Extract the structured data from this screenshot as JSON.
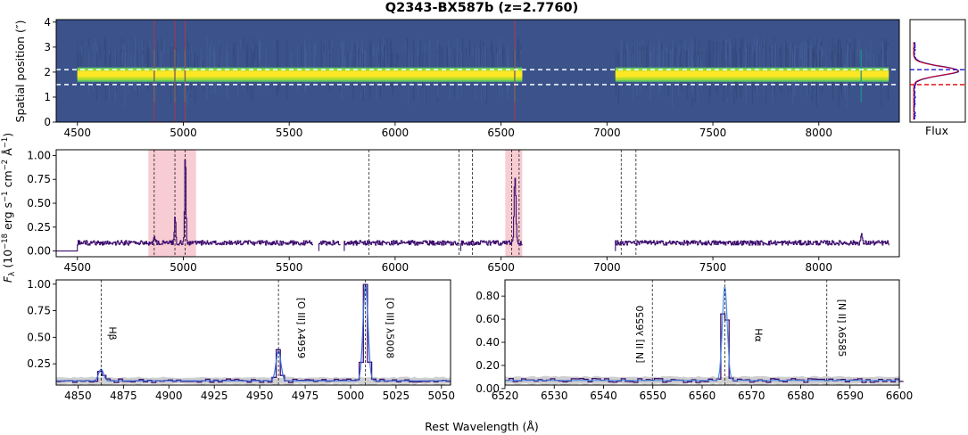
{
  "figure": {
    "title": "Q2343-BX587b (z=2.7760)",
    "xlabel": "Rest Wavelength (Å)"
  },
  "chart_data": [
    {
      "type": "heatmap",
      "name": "2D spectrum",
      "ylabel": "Spatial position (″)",
      "xlim": [
        4400,
        8380
      ],
      "ylim": [
        4.1,
        0
      ],
      "xticks": [
        4500,
        5000,
        5500,
        6000,
        6500,
        7000,
        7500,
        8000
      ],
      "yticks": [
        0,
        1,
        2,
        3,
        4
      ],
      "coverage": [
        [
          4500,
          6600
        ],
        [
          7040,
          8330
        ]
      ],
      "trace_center": 2.2,
      "extraction_window": [
        2.0,
        2.6
      ],
      "colors": {
        "background": "#3b528b",
        "trace": "#fde725",
        "edge": "#5ec962",
        "window": "#ffffff",
        "lines": "#e0302a"
      },
      "marked_lines": [
        4862.7,
        4960.3,
        5008.2,
        6564.6
      ]
    },
    {
      "type": "line",
      "name": "spatial profile",
      "xlabel": "Flux",
      "ylim": [
        4.1,
        0
      ],
      "profile_peak": 2.05,
      "window": [
        2.0,
        2.6
      ],
      "colors": {
        "profile": "#0000cc",
        "model": "#e00000",
        "window_upper": "#0000cc",
        "window_lower": "#e00000"
      }
    },
    {
      "type": "line",
      "name": "1D spectrum",
      "ylabel": "F_λ (10⁻¹⁸ erg s⁻¹ cm⁻² Å⁻¹)",
      "ylabel_parts": {
        "sym": "F",
        "sub": "λ",
        "a": "(10",
        "e1": "−18",
        "b": " erg s",
        "e2": "−1",
        "c": " cm",
        "e3": "−2",
        "d": " Å",
        "e4": "−1",
        "e": ")"
      },
      "xlim": [
        4400,
        8380
      ],
      "ylim": [
        -0.06,
        1.06
      ],
      "xticks": [
        4500,
        5000,
        5500,
        6000,
        6500,
        7000,
        7500,
        8000
      ],
      "yticks": [
        0.0,
        0.25,
        0.5,
        0.75,
        1.0
      ],
      "continuum": 0.085,
      "segments": [
        [
          4500,
          5610
        ],
        [
          5640,
          5740
        ],
        [
          5760,
          6300
        ],
        [
          6310,
          6600
        ],
        [
          7040,
          8330
        ]
      ],
      "emission_lines": [
        {
          "center": 4862.7,
          "peak": 0.17,
          "width": 3
        },
        {
          "center": 4960.3,
          "peak": 0.36,
          "width": 3
        },
        {
          "center": 5008.2,
          "peak": 1.0,
          "width": 3
        },
        {
          "center": 6564.6,
          "peak": 0.78,
          "width": 4
        },
        {
          "center": 8200,
          "peak": 0.18,
          "width": 3
        }
      ],
      "shaded_ranges": [
        [
          4835,
          5060
        ],
        [
          6520,
          6600
        ]
      ],
      "vlines": [
        4862.7,
        4960.3,
        5008.2,
        5877,
        6302,
        6365,
        6549.9,
        6585.3,
        7067,
        7137
      ],
      "colors": {
        "spectrum": "#3d0e6e",
        "shade": "#f7c3cb",
        "vline": "#000000"
      }
    },
    {
      "type": "line",
      "name": "Hβ + [O III] zoom",
      "xlim": [
        4838,
        5055
      ],
      "ylim": [
        0.05,
        1.04
      ],
      "xticks": [
        4850,
        4875,
        4900,
        4925,
        4950,
        4975,
        5000,
        5025,
        5050
      ],
      "yticks": [
        0.25,
        0.5,
        0.75,
        1.0
      ],
      "continuum": 0.09,
      "lines": [
        {
          "label": "Hβ",
          "center": 4862.7,
          "peak": 0.2
        },
        {
          "label": "[O III] λ4959",
          "center": 4960.3,
          "peak": 0.37
        },
        {
          "label": "[O III] λ5008",
          "center": 5008.2,
          "peak": 1.0
        }
      ],
      "colors": {
        "data": "#3d0e6e",
        "model": "#3b6fe0",
        "error": "#c4c4c4"
      }
    },
    {
      "type": "line",
      "name": "Hα + [N II] zoom",
      "xlim": [
        6520,
        6600
      ],
      "ylim": [
        0.03,
        0.94
      ],
      "xticks": [
        6520,
        6530,
        6540,
        6550,
        6560,
        6570,
        6580,
        6590,
        6600
      ],
      "yticks": [
        0.0,
        0.2,
        0.4,
        0.6,
        0.8
      ],
      "continuum": 0.07,
      "lines": [
        {
          "label": "[N II] λ6550",
          "center": 6549.9
        },
        {
          "label": "Hα",
          "center": 6564.6,
          "peak": 0.88
        },
        {
          "label": "[N II] λ6585",
          "center": 6585.3
        }
      ],
      "colors": {
        "data": "#3d0e6e",
        "model": "#4a8ce8",
        "error": "#c4c4c4"
      }
    }
  ]
}
